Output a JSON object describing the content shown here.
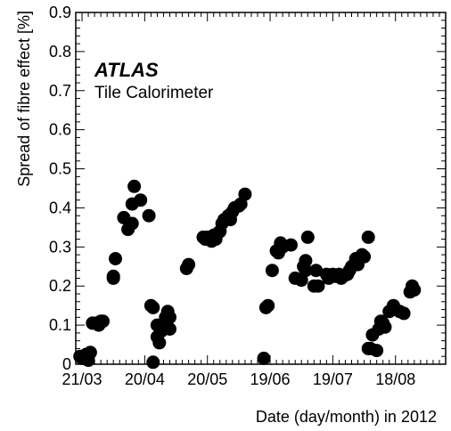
{
  "chart_data": {
    "type": "scatter",
    "xlabel": "Date (day/month) in 2012",
    "ylabel": "Spread of fibre effect [%]",
    "ylim": [
      0,
      0.9
    ],
    "y_ticks": [
      "0",
      "0.1",
      "0.2",
      "0.3",
      "0.4",
      "0.5",
      "0.6",
      "0.7",
      "0.8",
      "0.9"
    ],
    "xlim": [
      "2012-03-18",
      "2012-09-11"
    ],
    "x_ticks": [
      {
        "date": "2012-03-21",
        "label": "21/03"
      },
      {
        "date": "2012-04-20",
        "label": "20/04"
      },
      {
        "date": "2012-05-20",
        "label": "20/05"
      },
      {
        "date": "2012-06-19",
        "label": "19/06"
      },
      {
        "date": "2012-07-19",
        "label": "19/07"
      },
      {
        "date": "2012-08-18",
        "label": "18/08"
      }
    ],
    "annotations": {
      "experiment": "ATLAS",
      "detector": "Tile Calorimeter"
    },
    "grid": false,
    "marker_color": "#000000",
    "series": [
      {
        "points": [
          [
            "2012-03-20",
            0.02
          ],
          [
            "2012-03-21",
            0.015
          ],
          [
            "2012-03-22",
            0.02
          ],
          [
            "2012-03-23",
            0.025
          ],
          [
            "2012-03-24",
            0.02
          ],
          [
            "2012-03-24",
            0.01
          ],
          [
            "2012-03-25",
            0.03
          ],
          [
            "2012-03-26",
            0.105
          ],
          [
            "2012-03-28",
            0.105
          ],
          [
            "2012-03-29",
            0.1
          ],
          [
            "2012-03-30",
            0.11
          ],
          [
            "2012-03-31",
            0.11
          ],
          [
            "2012-04-05",
            0.225
          ],
          [
            "2012-04-05",
            0.22
          ],
          [
            "2012-04-06",
            0.27
          ],
          [
            "2012-04-10",
            0.375
          ],
          [
            "2012-04-12",
            0.345
          ],
          [
            "2012-04-14",
            0.36
          ],
          [
            "2012-04-14",
            0.41
          ],
          [
            "2012-04-15",
            0.455
          ],
          [
            "2012-04-18",
            0.42
          ],
          [
            "2012-04-22",
            0.38
          ],
          [
            "2012-04-23",
            0.15
          ],
          [
            "2012-04-24",
            0.145
          ],
          [
            "2012-04-24",
            0.005
          ],
          [
            "2012-04-26",
            0.1
          ],
          [
            "2012-04-26",
            0.07
          ],
          [
            "2012-04-27",
            0.055
          ],
          [
            "2012-04-28",
            0.085
          ],
          [
            "2012-04-29",
            0.095
          ],
          [
            "2012-04-30",
            0.12
          ],
          [
            "2012-05-01",
            0.135
          ],
          [
            "2012-05-02",
            0.12
          ],
          [
            "2012-05-02",
            0.09
          ],
          [
            "2012-05-10",
            0.245
          ],
          [
            "2012-05-11",
            0.255
          ],
          [
            "2012-05-18",
            0.325
          ],
          [
            "2012-05-19",
            0.32
          ],
          [
            "2012-05-20",
            0.325
          ],
          [
            "2012-05-21",
            0.32
          ],
          [
            "2012-05-22",
            0.315
          ],
          [
            "2012-05-23",
            0.33
          ],
          [
            "2012-05-24",
            0.32
          ],
          [
            "2012-05-25",
            0.335
          ],
          [
            "2012-05-26",
            0.34
          ],
          [
            "2012-05-27",
            0.36
          ],
          [
            "2012-05-28",
            0.37
          ],
          [
            "2012-05-30",
            0.38
          ],
          [
            "2012-05-31",
            0.37
          ],
          [
            "2012-06-01",
            0.39
          ],
          [
            "2012-06-02",
            0.4
          ],
          [
            "2012-06-04",
            0.405
          ],
          [
            "2012-06-05",
            0.41
          ],
          [
            "2012-06-07",
            0.435
          ],
          [
            "2012-06-16",
            0.015
          ],
          [
            "2012-06-17",
            0.145
          ],
          [
            "2012-06-18",
            0.15
          ],
          [
            "2012-06-20",
            0.24
          ],
          [
            "2012-06-22",
            0.29
          ],
          [
            "2012-06-23",
            0.285
          ],
          [
            "2012-06-24",
            0.31
          ],
          [
            "2012-06-25",
            0.3
          ],
          [
            "2012-06-29",
            0.305
          ],
          [
            "2012-07-01",
            0.22
          ],
          [
            "2012-07-04",
            0.215
          ],
          [
            "2012-07-05",
            0.25
          ],
          [
            "2012-07-06",
            0.265
          ],
          [
            "2012-07-06",
            0.24
          ],
          [
            "2012-07-07",
            0.325
          ],
          [
            "2012-07-10",
            0.2
          ],
          [
            "2012-07-11",
            0.24
          ],
          [
            "2012-07-12",
            0.2
          ],
          [
            "2012-07-16",
            0.23
          ],
          [
            "2012-07-17",
            0.22
          ],
          [
            "2012-07-19",
            0.23
          ],
          [
            "2012-07-20",
            0.225
          ],
          [
            "2012-07-22",
            0.23
          ],
          [
            "2012-07-23",
            0.22
          ],
          [
            "2012-07-24",
            0.225
          ],
          [
            "2012-07-26",
            0.23
          ],
          [
            "2012-07-27",
            0.24
          ],
          [
            "2012-07-28",
            0.25
          ],
          [
            "2012-07-30",
            0.27
          ],
          [
            "2012-07-31",
            0.255
          ],
          [
            "2012-08-02",
            0.28
          ],
          [
            "2012-08-03",
            0.275
          ],
          [
            "2012-08-05",
            0.325
          ],
          [
            "2012-08-05",
            0.04
          ],
          [
            "2012-08-06",
            0.04
          ],
          [
            "2012-08-07",
            0.075
          ],
          [
            "2012-08-09",
            0.035
          ],
          [
            "2012-08-10",
            0.09
          ],
          [
            "2012-08-11",
            0.11
          ],
          [
            "2012-08-12",
            0.105
          ],
          [
            "2012-08-13",
            0.095
          ],
          [
            "2012-08-15",
            0.135
          ],
          [
            "2012-08-17",
            0.15
          ],
          [
            "2012-08-20",
            0.135
          ],
          [
            "2012-08-22",
            0.13
          ],
          [
            "2012-08-25",
            0.185
          ],
          [
            "2012-08-26",
            0.2
          ],
          [
            "2012-08-27",
            0.19
          ]
        ]
      }
    ]
  }
}
